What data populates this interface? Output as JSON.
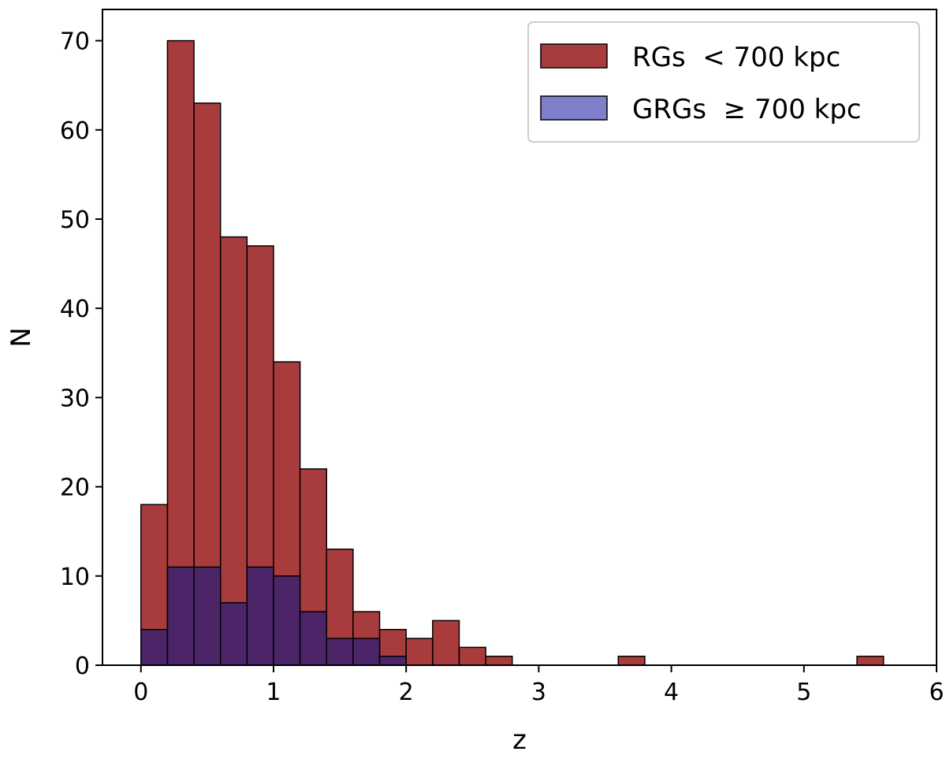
{
  "chart_data": {
    "type": "bar",
    "subtype": "histogram-overlay",
    "xlabel": "z",
    "ylabel": "N",
    "xlim": [
      -0.29,
      6.0
    ],
    "ylim": [
      0,
      73.5
    ],
    "xticks": [
      0,
      1,
      2,
      3,
      4,
      5,
      6
    ],
    "yticks": [
      0,
      10,
      20,
      30,
      40,
      50,
      60,
      70
    ],
    "bin_edges": [
      0.0,
      0.2,
      0.4,
      0.6,
      0.8,
      1.0,
      1.2,
      1.4,
      1.6,
      1.8,
      2.0,
      2.2,
      2.4,
      2.6,
      2.8,
      3.0,
      3.2,
      3.4,
      3.6,
      3.8,
      4.0,
      4.2,
      4.4,
      4.6,
      4.8,
      5.0,
      5.2,
      5.4,
      5.6,
      5.8
    ],
    "series": [
      {
        "name": "RGs  < 700 kpc",
        "color": "#a83c3c",
        "values": [
          18,
          70,
          63,
          48,
          47,
          34,
          22,
          13,
          6,
          4,
          3,
          5,
          2,
          1,
          0,
          0,
          0,
          0,
          1,
          0,
          0,
          0,
          0,
          0,
          0,
          0,
          0,
          1,
          0
        ]
      },
      {
        "name": "GRGs  ≥ 700 kpc",
        "color": "#4b2568",
        "legend_color": "#7f80cc",
        "values": [
          4,
          11,
          11,
          7,
          11,
          10,
          6,
          3,
          3,
          1,
          0,
          0,
          0,
          0,
          0,
          0,
          0,
          0,
          0,
          0,
          0,
          0,
          0,
          0,
          0,
          0,
          0,
          0,
          0
        ]
      }
    ],
    "legend_position": "top-right",
    "grid": false
  }
}
